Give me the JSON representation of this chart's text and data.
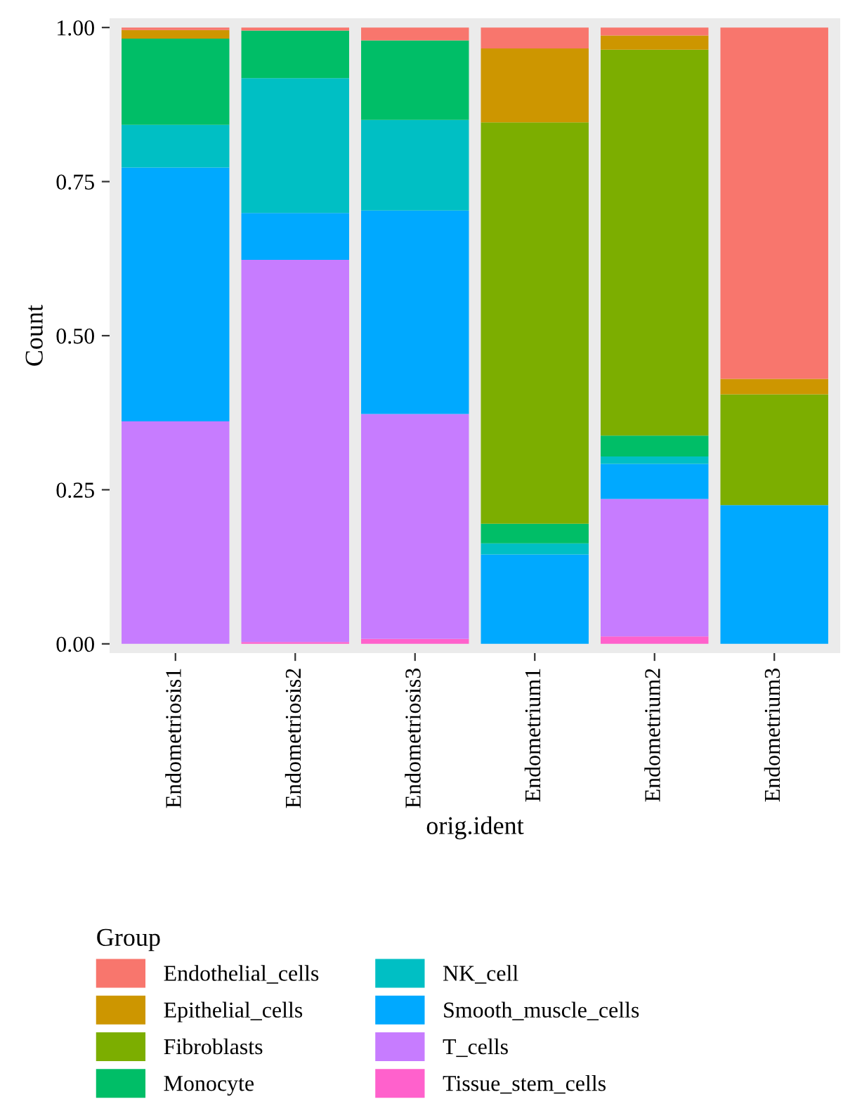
{
  "chart_data": {
    "type": "bar",
    "stacked": true,
    "xlabel": "orig.ident",
    "ylabel": "Count",
    "legend_title": "Group",
    "legend": "bottom",
    "grid": false,
    "categories": [
      "Endometriosis1",
      "Endometriosis2",
      "Endometriosis3",
      "Endometrium1",
      "Endometrium2",
      "Endometrium3"
    ],
    "ylim": [
      -0.015,
      1.015
    ],
    "yticks": [
      {
        "value": 0,
        "label": "0.00"
      },
      {
        "value": 0.25,
        "label": "0.25"
      },
      {
        "value": 0.5,
        "label": "0.50"
      },
      {
        "value": 0.75,
        "label": "0.75"
      },
      {
        "value": 1,
        "label": "1.00"
      }
    ],
    "series": [
      {
        "name": "Tissue_stem_cells",
        "color": "#ff61cc",
        "values": [
          null,
          0.003,
          0.008,
          null,
          0.012,
          null
        ]
      },
      {
        "name": "T_cells",
        "color": "#c77cff",
        "values": [
          0.361,
          0.62,
          0.365,
          null,
          0.223,
          null
        ]
      },
      {
        "name": "Smooth_muscle_cells",
        "color": "#00a9ff",
        "values": [
          0.412,
          0.076,
          0.33,
          0.145,
          0.057,
          0.225
        ]
      },
      {
        "name": "NK_cell",
        "color": "#00bfc4",
        "values": [
          0.069,
          0.219,
          0.147,
          0.018,
          0.012,
          null
        ]
      },
      {
        "name": "Monocyte",
        "color": "#00be67",
        "values": [
          0.14,
          0.077,
          0.129,
          0.032,
          0.034,
          null
        ]
      },
      {
        "name": "Fibroblasts",
        "color": "#7cae00",
        "values": [
          null,
          null,
          null,
          0.651,
          0.626,
          0.18
        ]
      },
      {
        "name": "Epithelial_cells",
        "color": "#cd9600",
        "values": [
          0.014,
          null,
          null,
          0.12,
          0.023,
          0.025
        ]
      },
      {
        "name": "Endothelial_cells",
        "color": "#f8766d",
        "values": [
          0.004,
          0.005,
          0.021,
          0.034,
          0.013,
          0.57
        ]
      }
    ]
  }
}
